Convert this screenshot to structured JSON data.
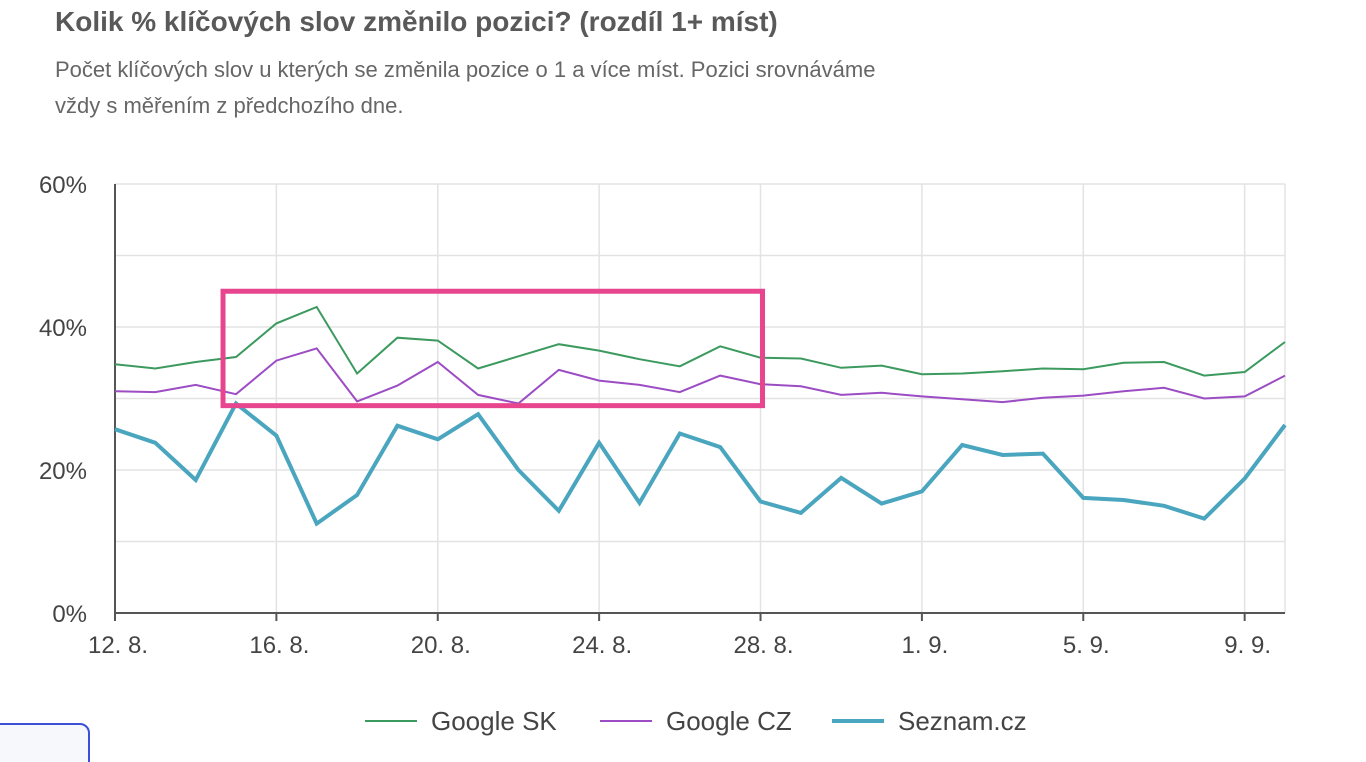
{
  "header": {
    "title": "Kolik % klíčových slov změnilo pozici? (rozdíl 1+ míst)",
    "subtitle_line1": "Počet klíčových slov u kterých se změnila pozice o 1 a více míst. Pozici srovnáváme",
    "subtitle_line2": "vždy s měřením z předchozího dne."
  },
  "chart_data": {
    "type": "line",
    "title": "Kolik % klíčových slov změnilo pozici? (rozdíl 1+ míst)",
    "subtitle": "Počet klíčových slov u kterých se změnila pozice o 1 a více míst. Pozici srovnáváme vždy s měřením z předchozího dne.",
    "xlabel": "",
    "ylabel": "",
    "ylim": [
      0,
      60
    ],
    "y_ticks": [
      0,
      20,
      40,
      60
    ],
    "y_tick_labels": [
      "0%",
      "20%",
      "40%",
      "60%"
    ],
    "categories": [
      "12. 8.",
      "13. 8.",
      "14. 8.",
      "15. 8.",
      "16. 8.",
      "17. 8.",
      "18. 8.",
      "19. 8.",
      "20. 8.",
      "21. 8.",
      "22. 8.",
      "23. 8.",
      "24. 8.",
      "25. 8.",
      "26. 8.",
      "27. 8.",
      "28. 8.",
      "29. 8.",
      "30. 8.",
      "31. 8.",
      "1. 9.",
      "2. 9.",
      "3. 9.",
      "4. 9.",
      "5. 9.",
      "6. 9.",
      "7. 9.",
      "8. 9.",
      "9. 9.",
      "10. 9."
    ],
    "x_tick_labels": [
      "12. 8.",
      "16. 8.",
      "20. 8.",
      "24. 8.",
      "28. 8.",
      "1. 9.",
      "5. 9.",
      "9. 9."
    ],
    "grid": true,
    "legend_position": "bottom",
    "series": [
      {
        "name": "Google SK",
        "color": "#3c9a5f",
        "values": [
          34.8,
          34.2,
          35.1,
          35.8,
          40.5,
          42.8,
          33.5,
          38.5,
          38.1,
          34.2,
          35.9,
          37.6,
          36.7,
          35.5,
          34.5,
          37.3,
          35.7,
          35.6,
          34.3,
          34.6,
          33.4,
          33.5,
          33.8,
          34.2,
          34.1,
          35.0,
          35.1,
          33.2,
          33.7,
          37.9
        ]
      },
      {
        "name": "Google CZ",
        "color": "#9c4dc4",
        "values": [
          31.0,
          30.9,
          31.9,
          30.6,
          35.3,
          37.0,
          29.6,
          31.8,
          35.1,
          30.5,
          29.3,
          34.0,
          32.5,
          31.9,
          30.9,
          33.2,
          32.0,
          31.7,
          30.5,
          30.8,
          30.3,
          29.9,
          29.5,
          30.1,
          30.4,
          31.0,
          31.5,
          30.0,
          30.3,
          33.2
        ]
      },
      {
        "name": "Seznam.cz",
        "color": "#4aa5bf",
        "values": [
          25.7,
          23.8,
          18.6,
          29.3,
          24.8,
          12.5,
          16.5,
          26.2,
          24.3,
          27.8,
          20.0,
          14.3,
          23.8,
          15.4,
          25.1,
          23.2,
          15.6,
          14.0,
          18.9,
          15.3,
          17.0,
          23.5,
          22.1,
          22.3,
          16.1,
          15.8,
          15.0,
          13.2,
          18.8,
          26.3
        ]
      }
    ],
    "annotations": [
      {
        "type": "highlight-rectangle",
        "color": "#e8458f",
        "x_from": "15. 8.",
        "x_to": "28. 8.",
        "y_from": 29,
        "y_to": 45
      }
    ]
  }
}
